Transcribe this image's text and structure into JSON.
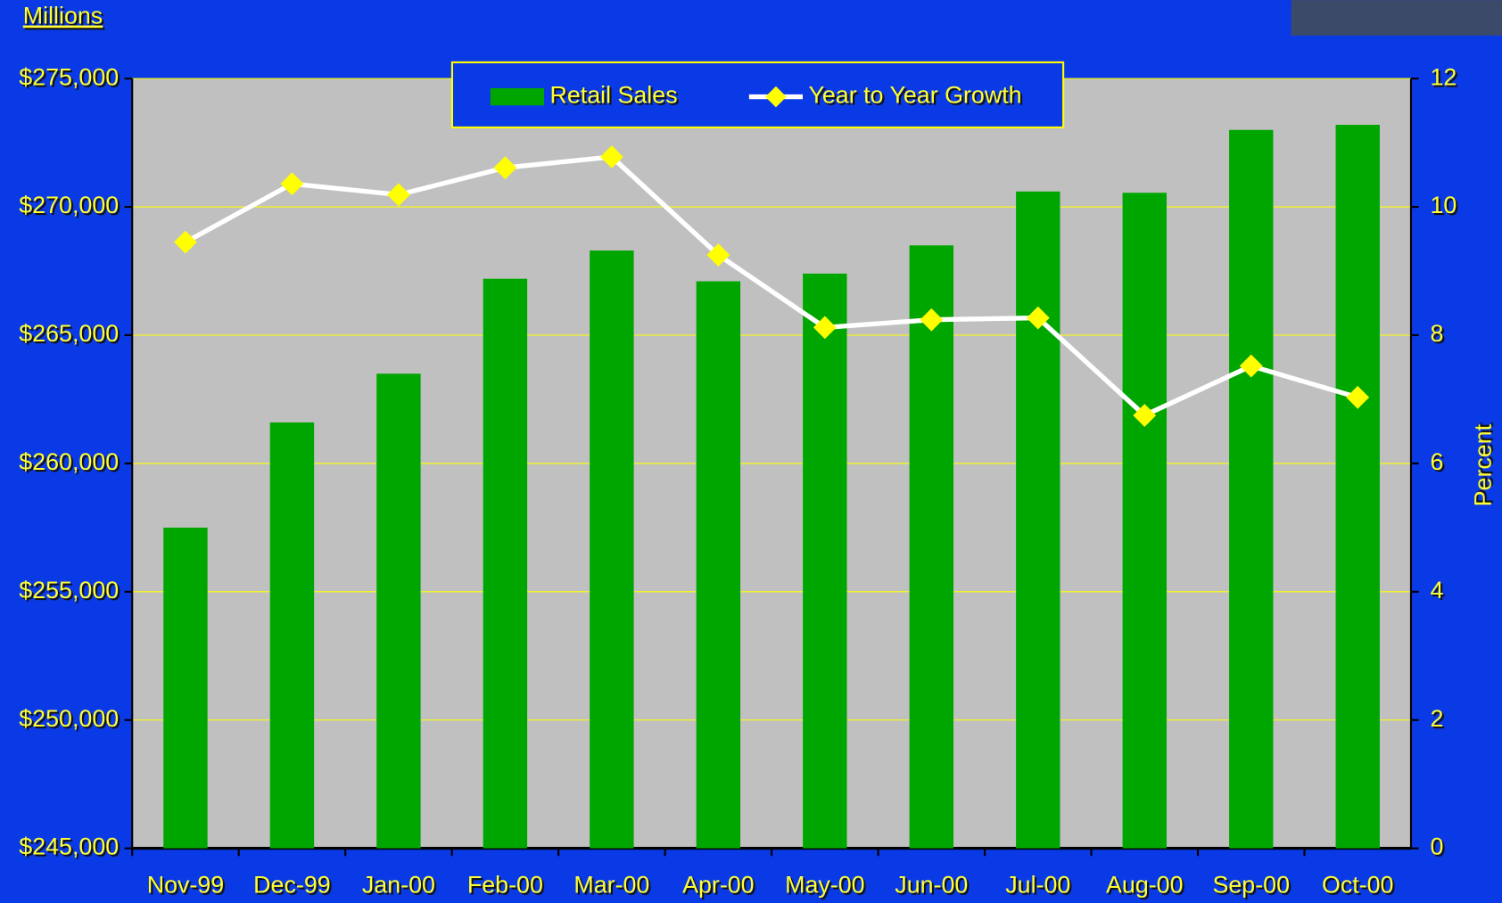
{
  "chart_data": {
    "type": "bar_line",
    "y_label": "Millions",
    "y2_label": "Percent",
    "categories": [
      "Nov-99",
      "Dec-99",
      "Jan-00",
      "Feb-00",
      "Mar-00",
      "Apr-00",
      "May-00",
      "Jun-00",
      "Jul-00",
      "Aug-00",
      "Sep-00",
      "Oct-00"
    ],
    "series": [
      {
        "name": "Retail Sales",
        "type": "bar",
        "color": "#00a600",
        "values": [
          257500,
          261600,
          263500,
          267200,
          268300,
          267100,
          267400,
          268500,
          270600,
          270550,
          273000,
          273200
        ]
      },
      {
        "name": "Year to Year Growth",
        "type": "line",
        "axis": "y2",
        "color": "#ffffff",
        "marker_color": "#ffff00",
        "values": [
          9.45,
          10.36,
          10.19,
          10.61,
          10.78,
          9.25,
          8.12,
          8.24,
          8.27,
          6.75,
          7.52,
          7.03
        ]
      }
    ],
    "ylim": [
      245000,
      275000
    ],
    "yticks": [
      {
        "value": 245000,
        "label": "$245,000"
      },
      {
        "value": 250000,
        "label": "$250,000"
      },
      {
        "value": 255000,
        "label": "$255,000"
      },
      {
        "value": 260000,
        "label": "$260,000"
      },
      {
        "value": 265000,
        "label": "$265,000"
      },
      {
        "value": 270000,
        "label": "$270,000"
      },
      {
        "value": 275000,
        "label": "$275,000"
      }
    ],
    "y2lim": [
      0,
      12
    ],
    "y2ticks": [
      0,
      2,
      4,
      6,
      8,
      10,
      12
    ],
    "grid": true,
    "legend": "top"
  }
}
